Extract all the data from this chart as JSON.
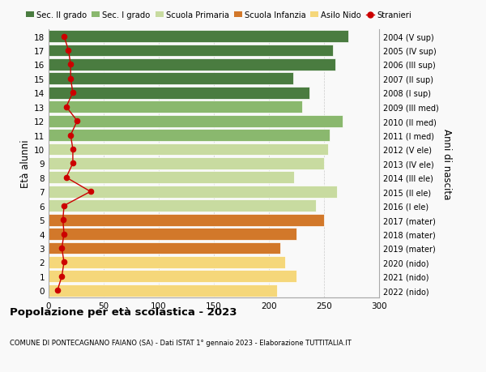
{
  "ages": [
    0,
    1,
    2,
    3,
    4,
    5,
    6,
    7,
    8,
    9,
    10,
    11,
    12,
    13,
    14,
    15,
    16,
    17,
    18
  ],
  "right_labels": [
    "2022 (nido)",
    "2021 (nido)",
    "2020 (nido)",
    "2019 (mater)",
    "2018 (mater)",
    "2017 (mater)",
    "2016 (I ele)",
    "2015 (II ele)",
    "2014 (III ele)",
    "2013 (IV ele)",
    "2012 (V ele)",
    "2011 (I med)",
    "2010 (II med)",
    "2009 (III med)",
    "2008 (I sup)",
    "2007 (II sup)",
    "2006 (III sup)",
    "2005 (IV sup)",
    "2004 (V sup)"
  ],
  "bar_values": [
    207,
    225,
    215,
    210,
    225,
    250,
    243,
    262,
    223,
    250,
    254,
    255,
    267,
    230,
    237,
    222,
    260,
    258,
    272
  ],
  "bar_colors": [
    "#f5d77a",
    "#f5d77a",
    "#f5d77a",
    "#d2782a",
    "#d2782a",
    "#d2782a",
    "#c8dba0",
    "#c8dba0",
    "#c8dba0",
    "#c8dba0",
    "#c8dba0",
    "#8ab86e",
    "#8ab86e",
    "#8ab86e",
    "#4a7c40",
    "#4a7c40",
    "#4a7c40",
    "#4a7c40",
    "#4a7c40"
  ],
  "stranieri_values": [
    8,
    12,
    14,
    12,
    14,
    13,
    14,
    38,
    16,
    22,
    22,
    20,
    26,
    16,
    22,
    20,
    20,
    18,
    14
  ],
  "legend_labels": [
    "Sec. II grado",
    "Sec. I grado",
    "Scuola Primaria",
    "Scuola Infanzia",
    "Asilo Nido",
    "Stranieri"
  ],
  "legend_colors": [
    "#4a7c40",
    "#8ab86e",
    "#c8dba0",
    "#d2782a",
    "#f5d77a",
    "#cc0000"
  ],
  "ylabel_left": "Età alunni",
  "ylabel_right": "Anni di nascita",
  "title": "Popolazione per età scolastica - 2023",
  "subtitle": "COMUNE DI PONTECAGNANO FAIANO (SA) - Dati ISTAT 1° gennaio 2023 - Elaborazione TUTTITALIA.IT",
  "xlim": [
    0,
    300
  ],
  "xticks": [
    0,
    50,
    100,
    150,
    200,
    250,
    300
  ],
  "background_color": "#f9f9f9",
  "grid_color": "#cccccc"
}
